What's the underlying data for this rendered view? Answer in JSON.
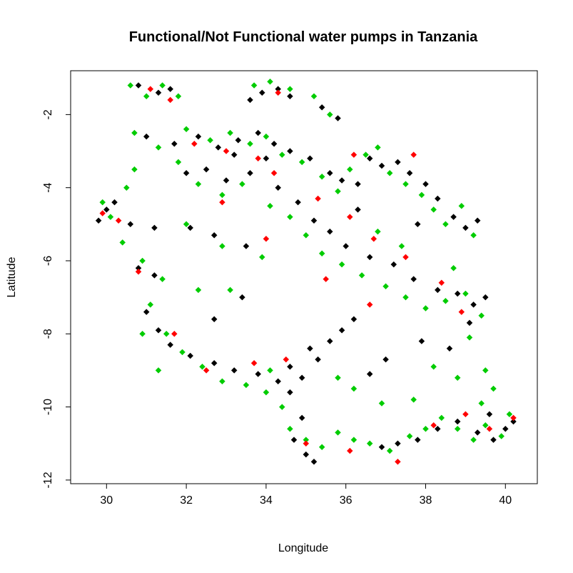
{
  "chart_data": {
    "type": "scatter",
    "title": "Functional/Not Functional water pumps in Tanzania",
    "xlabel": "Longitude",
    "ylabel": "Latitude",
    "xlim": [
      29.1,
      40.8
    ],
    "ylim": [
      -12.1,
      -0.8
    ],
    "x_ticks": [
      30,
      32,
      34,
      36,
      38,
      40
    ],
    "y_ticks": [
      -2,
      -4,
      -6,
      -8,
      -10,
      -12
    ],
    "grid": false,
    "legend": "none",
    "series": [
      {
        "color": "#000000",
        "points": [
          [
            30.8,
            -1.2
          ],
          [
            31.3,
            -1.4
          ],
          [
            31.6,
            -1.3
          ],
          [
            33.6,
            -1.6
          ],
          [
            33.9,
            -1.4
          ],
          [
            34.3,
            -1.3
          ],
          [
            34.6,
            -1.5
          ],
          [
            35.4,
            -1.8
          ],
          [
            35.8,
            -2.1
          ],
          [
            31.0,
            -2.6
          ],
          [
            31.7,
            -2.8
          ],
          [
            32.3,
            -2.6
          ],
          [
            32.8,
            -2.9
          ],
          [
            33.3,
            -2.7
          ],
          [
            33.8,
            -2.5
          ],
          [
            34.2,
            -2.8
          ],
          [
            34.6,
            -3.0
          ],
          [
            35.1,
            -3.2
          ],
          [
            35.6,
            -3.6
          ],
          [
            35.9,
            -3.8
          ],
          [
            36.3,
            -3.9
          ],
          [
            36.6,
            -3.2
          ],
          [
            36.9,
            -3.4
          ],
          [
            37.3,
            -3.3
          ],
          [
            37.6,
            -3.6
          ],
          [
            38.0,
            -3.9
          ],
          [
            38.3,
            -4.3
          ],
          [
            38.7,
            -4.8
          ],
          [
            39.0,
            -5.1
          ],
          [
            39.3,
            -4.9
          ],
          [
            32.0,
            -3.6
          ],
          [
            32.5,
            -3.5
          ],
          [
            33.0,
            -3.8
          ],
          [
            33.6,
            -3.6
          ],
          [
            34.3,
            -4.0
          ],
          [
            34.8,
            -4.4
          ],
          [
            35.2,
            -4.9
          ],
          [
            35.6,
            -5.2
          ],
          [
            36.0,
            -5.6
          ],
          [
            36.6,
            -5.9
          ],
          [
            37.2,
            -6.1
          ],
          [
            37.7,
            -6.5
          ],
          [
            38.3,
            -6.8
          ],
          [
            38.8,
            -6.9
          ],
          [
            39.2,
            -7.2
          ],
          [
            39.5,
            -7.0
          ],
          [
            39.1,
            -7.7
          ],
          [
            30.0,
            -4.6
          ],
          [
            29.8,
            -4.9
          ],
          [
            30.2,
            -4.4
          ],
          [
            30.6,
            -5.0
          ],
          [
            31.2,
            -5.1
          ],
          [
            32.1,
            -5.1
          ],
          [
            32.7,
            -5.3
          ],
          [
            33.5,
            -5.6
          ],
          [
            30.8,
            -6.2
          ],
          [
            31.2,
            -6.4
          ],
          [
            31.0,
            -7.4
          ],
          [
            31.3,
            -7.9
          ],
          [
            31.6,
            -8.3
          ],
          [
            32.1,
            -8.6
          ],
          [
            32.7,
            -8.8
          ],
          [
            33.2,
            -9.0
          ],
          [
            33.8,
            -9.1
          ],
          [
            34.3,
            -9.3
          ],
          [
            34.6,
            -9.6
          ],
          [
            34.9,
            -9.2
          ],
          [
            35.3,
            -8.7
          ],
          [
            35.6,
            -8.2
          ],
          [
            35.9,
            -7.9
          ],
          [
            36.2,
            -7.6
          ],
          [
            35.1,
            -8.4
          ],
          [
            34.6,
            -8.9
          ],
          [
            34.9,
            -10.3
          ],
          [
            34.7,
            -10.9
          ],
          [
            35.0,
            -11.3
          ],
          [
            35.2,
            -11.5
          ],
          [
            36.9,
            -11.1
          ],
          [
            37.3,
            -11.0
          ],
          [
            37.8,
            -10.9
          ],
          [
            38.3,
            -10.6
          ],
          [
            38.8,
            -10.4
          ],
          [
            39.3,
            -10.7
          ],
          [
            39.7,
            -10.9
          ],
          [
            40.0,
            -10.6
          ],
          [
            40.2,
            -10.4
          ],
          [
            39.6,
            -10.2
          ],
          [
            33.4,
            -7.0
          ],
          [
            32.7,
            -7.6
          ],
          [
            37.0,
            -8.7
          ],
          [
            36.6,
            -9.1
          ],
          [
            37.9,
            -8.2
          ],
          [
            38.6,
            -8.4
          ],
          [
            34.0,
            -3.2
          ],
          [
            33.2,
            -3.1
          ],
          [
            36.3,
            -4.6
          ],
          [
            37.8,
            -5.0
          ]
        ]
      },
      {
        "color": "#00cc00",
        "points": [
          [
            30.6,
            -1.2
          ],
          [
            31.0,
            -1.5
          ],
          [
            31.4,
            -1.2
          ],
          [
            31.8,
            -1.5
          ],
          [
            33.7,
            -1.2
          ],
          [
            34.1,
            -1.1
          ],
          [
            34.6,
            -1.3
          ],
          [
            35.2,
            -1.5
          ],
          [
            35.6,
            -2.0
          ],
          [
            30.7,
            -2.5
          ],
          [
            31.3,
            -2.9
          ],
          [
            32.0,
            -2.4
          ],
          [
            32.6,
            -2.7
          ],
          [
            33.1,
            -2.5
          ],
          [
            33.6,
            -2.8
          ],
          [
            34.0,
            -2.6
          ],
          [
            34.4,
            -3.1
          ],
          [
            34.9,
            -3.3
          ],
          [
            35.4,
            -3.7
          ],
          [
            35.8,
            -4.1
          ],
          [
            36.1,
            -3.5
          ],
          [
            36.5,
            -3.1
          ],
          [
            36.8,
            -2.9
          ],
          [
            37.1,
            -3.6
          ],
          [
            37.5,
            -3.9
          ],
          [
            37.9,
            -4.2
          ],
          [
            38.2,
            -4.6
          ],
          [
            38.5,
            -5.0
          ],
          [
            38.9,
            -4.5
          ],
          [
            39.2,
            -5.3
          ],
          [
            31.8,
            -3.3
          ],
          [
            32.3,
            -3.9
          ],
          [
            32.9,
            -4.2
          ],
          [
            33.4,
            -3.9
          ],
          [
            34.1,
            -4.5
          ],
          [
            34.6,
            -4.8
          ],
          [
            35.0,
            -5.3
          ],
          [
            35.4,
            -5.8
          ],
          [
            35.9,
            -6.1
          ],
          [
            36.4,
            -6.4
          ],
          [
            37.0,
            -6.7
          ],
          [
            37.5,
            -7.0
          ],
          [
            38.0,
            -7.3
          ],
          [
            38.5,
            -7.1
          ],
          [
            39.0,
            -6.9
          ],
          [
            39.4,
            -7.5
          ],
          [
            29.9,
            -4.4
          ],
          [
            30.1,
            -4.8
          ],
          [
            30.4,
            -5.5
          ],
          [
            30.9,
            -6.0
          ],
          [
            31.4,
            -6.5
          ],
          [
            32.0,
            -5.0
          ],
          [
            32.9,
            -5.6
          ],
          [
            33.9,
            -5.9
          ],
          [
            31.1,
            -7.2
          ],
          [
            31.5,
            -8.0
          ],
          [
            31.9,
            -8.5
          ],
          [
            32.4,
            -8.9
          ],
          [
            32.9,
            -9.3
          ],
          [
            33.5,
            -9.4
          ],
          [
            34.0,
            -9.6
          ],
          [
            34.4,
            -10.0
          ],
          [
            34.1,
            -9.0
          ],
          [
            34.6,
            -10.6
          ],
          [
            35.0,
            -10.9
          ],
          [
            35.4,
            -11.1
          ],
          [
            35.8,
            -10.7
          ],
          [
            36.2,
            -10.9
          ],
          [
            36.6,
            -11.0
          ],
          [
            37.1,
            -11.2
          ],
          [
            37.6,
            -10.8
          ],
          [
            38.0,
            -10.6
          ],
          [
            38.4,
            -10.3
          ],
          [
            38.8,
            -10.6
          ],
          [
            39.2,
            -10.9
          ],
          [
            39.5,
            -10.5
          ],
          [
            39.9,
            -10.8
          ],
          [
            40.1,
            -10.2
          ],
          [
            39.4,
            -9.9
          ],
          [
            39.7,
            -9.5
          ],
          [
            39.5,
            -9.0
          ],
          [
            38.8,
            -9.2
          ],
          [
            37.7,
            -9.8
          ],
          [
            36.9,
            -9.9
          ],
          [
            36.2,
            -9.5
          ],
          [
            35.8,
            -9.2
          ],
          [
            33.1,
            -6.8
          ],
          [
            32.3,
            -6.8
          ],
          [
            31.3,
            -9.0
          ],
          [
            30.9,
            -8.0
          ],
          [
            30.7,
            -3.5
          ],
          [
            30.5,
            -4.0
          ],
          [
            36.8,
            -5.2
          ],
          [
            37.4,
            -5.6
          ],
          [
            38.7,
            -6.2
          ],
          [
            39.1,
            -8.1
          ],
          [
            38.2,
            -8.9
          ]
        ]
      },
      {
        "color": "#ff0000",
        "points": [
          [
            31.1,
            -1.3
          ],
          [
            31.6,
            -1.6
          ],
          [
            34.3,
            -1.4
          ],
          [
            32.2,
            -2.8
          ],
          [
            33.0,
            -3.0
          ],
          [
            33.8,
            -3.2
          ],
          [
            34.2,
            -3.6
          ],
          [
            35.3,
            -4.3
          ],
          [
            36.1,
            -4.8
          ],
          [
            36.7,
            -5.4
          ],
          [
            37.5,
            -5.9
          ],
          [
            38.4,
            -6.6
          ],
          [
            38.9,
            -7.4
          ],
          [
            29.9,
            -4.7
          ],
          [
            30.3,
            -4.9
          ],
          [
            30.8,
            -6.3
          ],
          [
            31.7,
            -8.0
          ],
          [
            32.5,
            -9.0
          ],
          [
            33.7,
            -8.8
          ],
          [
            34.5,
            -8.7
          ],
          [
            35.0,
            -11.0
          ],
          [
            36.1,
            -11.2
          ],
          [
            37.3,
            -11.5
          ],
          [
            38.2,
            -10.5
          ],
          [
            39.0,
            -10.2
          ],
          [
            39.6,
            -10.6
          ],
          [
            40.2,
            -10.3
          ],
          [
            36.6,
            -7.2
          ],
          [
            35.5,
            -6.5
          ],
          [
            34.0,
            -5.4
          ],
          [
            32.9,
            -4.4
          ],
          [
            36.2,
            -3.1
          ],
          [
            37.7,
            -3.1
          ]
        ]
      }
    ]
  }
}
